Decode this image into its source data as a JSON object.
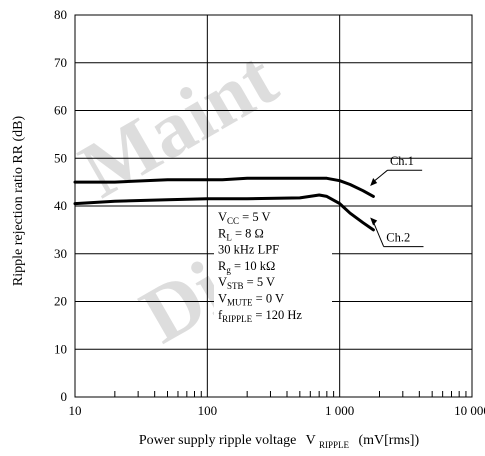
{
  "chart_data": {
    "type": "line",
    "xlabel": "Power supply ripple voltage",
    "xlabel_symbol": "V",
    "xlabel_symbol_sub": "RIPPLE",
    "xlabel_unit": "(mV[rms])",
    "ylabel": "Ripple rejection ratio  RR  (dB)",
    "x_scale": "log",
    "xlim": [
      10,
      10000
    ],
    "ylim": [
      0,
      80
    ],
    "x_ticks": [
      10,
      100,
      1000,
      10000
    ],
    "x_tick_labels": [
      "10",
      "100",
      "1 000",
      "10 000"
    ],
    "y_ticks": [
      0,
      10,
      20,
      30,
      40,
      50,
      60,
      70,
      80
    ],
    "y_tick_labels": [
      "0",
      "10",
      "20",
      "30",
      "40",
      "50",
      "60",
      "70",
      "80"
    ],
    "grid": true,
    "series": [
      {
        "name": "Ch.1",
        "x": [
          10,
          20,
          50,
          100,
          130,
          200,
          500,
          800,
          1000,
          1200,
          1500,
          1800
        ],
        "y": [
          45,
          45,
          45.5,
          45.5,
          45.5,
          45.8,
          45.8,
          45.8,
          45.3,
          44.5,
          43.2,
          42
        ]
      },
      {
        "name": "Ch.2",
        "x": [
          10,
          20,
          50,
          100,
          200,
          500,
          700,
          800,
          1000,
          1200,
          1500,
          1800
        ],
        "y": [
          40.5,
          41,
          41.3,
          41.5,
          41.5,
          41.7,
          42.3,
          42,
          40.5,
          38.5,
          36.5,
          35
        ]
      }
    ],
    "conditions": [
      {
        "main": "V",
        "sub": "CC",
        "rest": " = 5 V"
      },
      {
        "main": "R",
        "sub": "L",
        "rest": " = 8 Ω"
      },
      {
        "main": "30 kHz LPF",
        "sub": "",
        "rest": ""
      },
      {
        "main": "R",
        "sub": "g",
        "rest": " = 10 kΩ"
      },
      {
        "main": "V",
        "sub": "STB",
        "rest": " = 5 V"
      },
      {
        "main": "V",
        "sub": "MUTE",
        "rest": " = 0 V"
      },
      {
        "main": "f",
        "sub": "RIPPLE",
        "rest": " = 120 Hz"
      }
    ],
    "watermark": "Maintenance/Discontinued"
  }
}
